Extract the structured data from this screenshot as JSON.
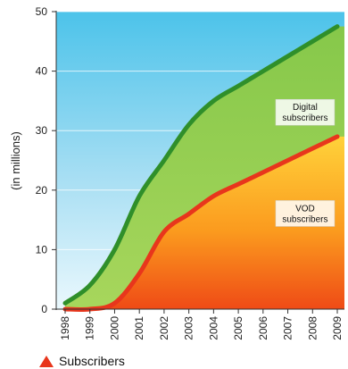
{
  "chart_data": {
    "type": "area",
    "x": [
      "1998",
      "1999",
      "2000",
      "2001",
      "2002",
      "2003",
      "2004",
      "2005",
      "2006",
      "2007",
      "2008",
      "2009"
    ],
    "ylabel": "(in millions)",
    "ylim": [
      0,
      50
    ],
    "yticks": [
      0,
      10,
      20,
      30,
      40,
      50
    ],
    "series": [
      {
        "name": "Digital subscribers",
        "values": [
          1,
          4,
          10,
          19,
          25,
          31,
          35,
          37.5,
          40,
          42.5,
          45,
          47.5
        ],
        "color": "#2f8f2a"
      },
      {
        "name": "VOD subscribers",
        "values": [
          0,
          0,
          1,
          6,
          13,
          16,
          19,
          21,
          23,
          25,
          27,
          29
        ],
        "color": "#e8361c"
      }
    ],
    "annotations": [
      {
        "lines": [
          "Digital",
          "subscribers"
        ],
        "series": "Digital subscribers"
      },
      {
        "lines": [
          "VOD",
          "subscribers"
        ],
        "series": "VOD subscribers"
      }
    ],
    "legend_text": "Subscribers",
    "legend_placement": "bottom-left"
  }
}
